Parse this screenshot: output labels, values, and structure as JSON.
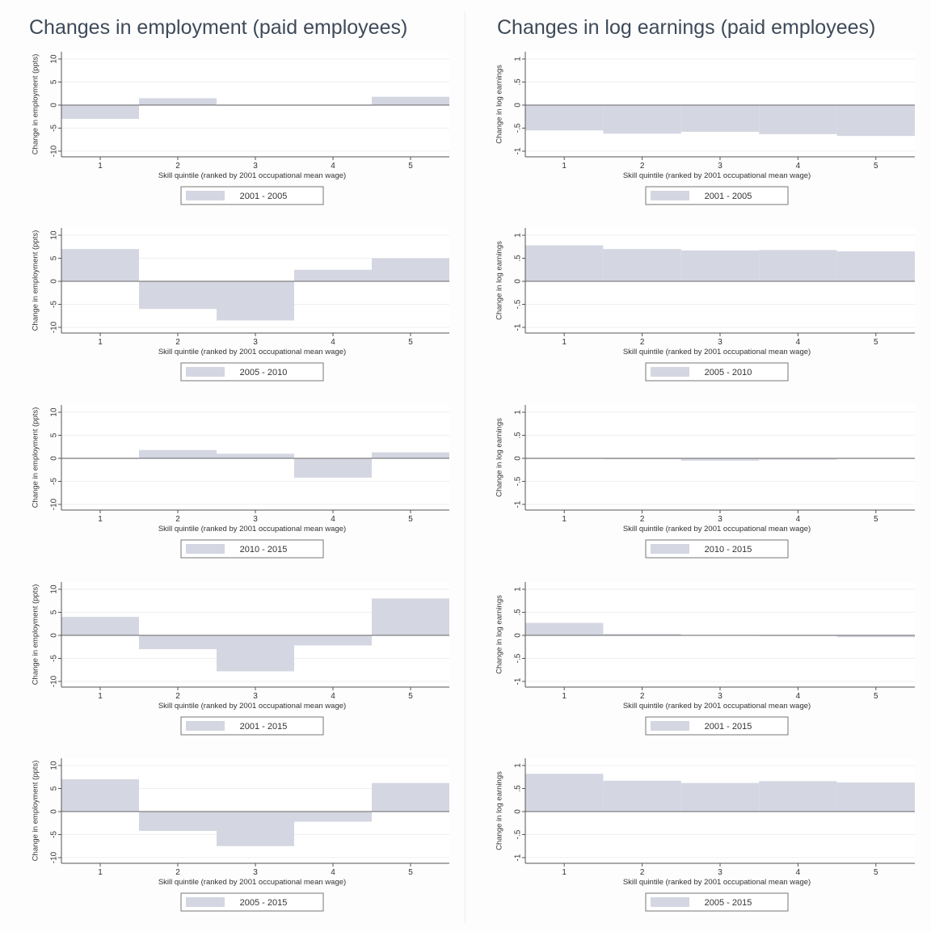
{
  "columns": {
    "employment": {
      "title": "Changes in employment (paid employees)"
    },
    "earnings": {
      "title": "Changes in log earnings (paid employees)"
    }
  },
  "colors": {
    "bar": "#d4d7e2",
    "axis": "#555555",
    "zero_line": "#666666",
    "grid": "#efefef",
    "panel_bg": "#ffffff",
    "legend_border": "#777777"
  },
  "chart_data": [
    {
      "type": "bar",
      "panel": "employment",
      "period": "2001 - 2005",
      "categories": [
        "1",
        "2",
        "3",
        "4",
        "5"
      ],
      "values": [
        -3.0,
        1.5,
        0.0,
        0.0,
        1.8
      ],
      "xlabel": "Skill quintile (ranked by 2001 occupational mean wage)",
      "ylabel": "Change in employment (ppts)",
      "ylim": [
        -10,
        10
      ],
      "yticks": [
        "10",
        "5",
        "0",
        "-5",
        "-10"
      ],
      "legend": "2001 - 2005",
      "legend_position": "bottom"
    },
    {
      "type": "bar",
      "panel": "employment",
      "period": "2005 - 2010",
      "categories": [
        "1",
        "2",
        "3",
        "4",
        "5"
      ],
      "values": [
        7.0,
        -6.0,
        -8.5,
        2.5,
        5.0
      ],
      "xlabel": "Skill quintile (ranked by 2001 occupational mean wage)",
      "ylabel": "Change in employment (ppts)",
      "ylim": [
        -10,
        10
      ],
      "yticks": [
        "10",
        "5",
        "0",
        "-5",
        "-10"
      ],
      "legend": "2005 - 2010",
      "legend_position": "bottom"
    },
    {
      "type": "bar",
      "panel": "employment",
      "period": "2010 - 2015",
      "categories": [
        "1",
        "2",
        "3",
        "4",
        "5"
      ],
      "values": [
        0.0,
        1.8,
        1.0,
        -4.2,
        1.3
      ],
      "xlabel": "Skill quintile (ranked by 2001 occupational mean wage)",
      "ylabel": "Change in employment (ppts)",
      "ylim": [
        -10,
        10
      ],
      "yticks": [
        "10",
        "5",
        "0",
        "-5",
        "-10"
      ],
      "legend": "2010 - 2015",
      "legend_position": "bottom"
    },
    {
      "type": "bar",
      "panel": "employment",
      "period": "2001 - 2015",
      "categories": [
        "1",
        "2",
        "3",
        "4",
        "5"
      ],
      "values": [
        4.0,
        -3.0,
        -7.8,
        -2.2,
        8.0
      ],
      "xlabel": "Skill quintile (ranked by 2001 occupational mean wage)",
      "ylabel": "Change in employment (ppts)",
      "ylim": [
        -10,
        10
      ],
      "yticks": [
        "10",
        "5",
        "0",
        "-5",
        "-10"
      ],
      "legend": "2001 - 2015",
      "legend_position": "bottom"
    },
    {
      "type": "bar",
      "panel": "employment",
      "period": "2005 - 2015",
      "categories": [
        "1",
        "2",
        "3",
        "4",
        "5"
      ],
      "values": [
        7.0,
        -4.2,
        -7.5,
        -2.2,
        6.2
      ],
      "xlabel": "Skill quintile (ranked by 2001 occupational mean wage)",
      "ylabel": "Change in employment (ppts)",
      "ylim": [
        -10,
        10
      ],
      "yticks": [
        "10",
        "5",
        "0",
        "-5",
        "-10"
      ],
      "legend": "2005 - 2015",
      "legend_position": "bottom"
    },
    {
      "type": "bar",
      "panel": "earnings",
      "period": "2001 - 2005",
      "categories": [
        "1",
        "2",
        "3",
        "4",
        "5"
      ],
      "values": [
        -0.55,
        -0.62,
        -0.58,
        -0.63,
        -0.67
      ],
      "xlabel": "Skill quintile (ranked by 2001 occupational mean wage)",
      "ylabel": "Change in log earnings",
      "ylim": [
        -1,
        1
      ],
      "yticks": [
        "1",
        ".5",
        "0",
        "-.5",
        "-1"
      ],
      "legend": "2001 - 2005",
      "legend_position": "bottom"
    },
    {
      "type": "bar",
      "panel": "earnings",
      "period": "2005 - 2010",
      "categories": [
        "1",
        "2",
        "3",
        "4",
        "5"
      ],
      "values": [
        0.78,
        0.7,
        0.67,
        0.68,
        0.65
      ],
      "xlabel": "Skill quintile (ranked by 2001 occupational mean wage)",
      "ylabel": "Change in log earnings",
      "ylim": [
        -1,
        1
      ],
      "yticks": [
        "1",
        ".5",
        "0",
        "-.5",
        "-1"
      ],
      "legend": "2005 - 2010",
      "legend_position": "bottom"
    },
    {
      "type": "bar",
      "panel": "earnings",
      "period": "2010 - 2015",
      "categories": [
        "1",
        "2",
        "3",
        "4",
        "5"
      ],
      "values": [
        0.0,
        -0.02,
        -0.05,
        -0.03,
        -0.01
      ],
      "xlabel": "Skill quintile (ranked by 2001 occupational mean wage)",
      "ylabel": "Change in log earnings",
      "ylim": [
        -1,
        1
      ],
      "yticks": [
        "1",
        ".5",
        "0",
        "-.5",
        "-1"
      ],
      "legend": "2010 - 2015",
      "legend_position": "bottom"
    },
    {
      "type": "bar",
      "panel": "earnings",
      "period": "2001 - 2015",
      "categories": [
        "1",
        "2",
        "3",
        "4",
        "5"
      ],
      "values": [
        0.27,
        0.03,
        0.01,
        -0.01,
        -0.04
      ],
      "xlabel": "Skill quintile (ranked by 2001 occupational mean wage)",
      "ylabel": "Change in log earnings",
      "ylim": [
        -1,
        1
      ],
      "yticks": [
        "1",
        ".5",
        "0",
        "-.5",
        "-1"
      ],
      "legend": "2001 - 2015",
      "legend_position": "bottom"
    },
    {
      "type": "bar",
      "panel": "earnings",
      "period": "2005 - 2015",
      "categories": [
        "1",
        "2",
        "3",
        "4",
        "5"
      ],
      "values": [
        0.82,
        0.67,
        0.62,
        0.66,
        0.63
      ],
      "xlabel": "Skill quintile (ranked by 2001 occupational mean wage)",
      "ylabel": "Change in log earnings",
      "ylim": [
        -1,
        1
      ],
      "yticks": [
        "1",
        ".5",
        "0",
        "-.5",
        "-1"
      ],
      "legend": "2005 - 2015",
      "legend_position": "bottom"
    }
  ]
}
